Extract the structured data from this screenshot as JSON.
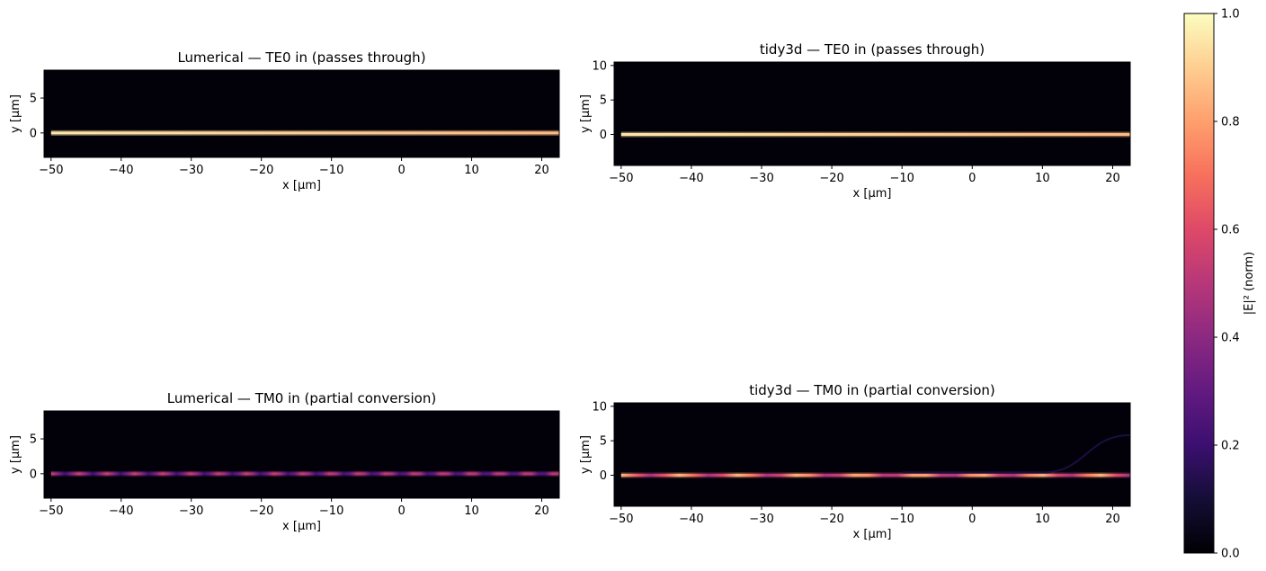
{
  "chart_data": [
    {
      "type": "heatmap",
      "title": "Lumerical — TE0 in (passes through)",
      "xlabel": "x [µm]",
      "ylabel": "y [µm]",
      "xlim": [
        -51,
        22.5
      ],
      "ylim": [
        -3.5,
        9
      ],
      "xticks": [
        -50,
        -40,
        -30,
        -20,
        -10,
        0,
        10,
        20
      ],
      "yticks": [
        0,
        5
      ],
      "waveguide_x": [
        -50,
        22.5
      ],
      "guided_mode": {
        "y_center": 0,
        "peak_intensity": 0.95,
        "beat_period_um": null,
        "beat_min_intensity": 0.7
      }
    },
    {
      "type": "heatmap",
      "title": "tidy3d — TE0 in (passes through)",
      "xlabel": "x [µm]",
      "ylabel": "y [µm]",
      "xlim": [
        -51,
        22.5
      ],
      "ylim": [
        -4.5,
        10.5
      ],
      "xticks": [
        -50,
        -40,
        -30,
        -20,
        -10,
        0,
        10,
        20
      ],
      "yticks": [
        0,
        5,
        10
      ],
      "waveguide_x": [
        -50,
        22.5
      ],
      "guided_mode": {
        "y_center": 0,
        "peak_intensity": 0.95,
        "beat_period_um": null,
        "beat_min_intensity": 0.7
      }
    },
    {
      "type": "heatmap",
      "title": "Lumerical — TM0 in (partial conversion)",
      "xlabel": "x [µm]",
      "ylabel": "y [µm]",
      "xlim": [
        -51,
        22.5
      ],
      "ylim": [
        -3.5,
        9
      ],
      "xticks": [
        -50,
        -40,
        -30,
        -20,
        -10,
        0,
        10,
        20
      ],
      "yticks": [
        0,
        5
      ],
      "waveguide_x": [
        -50,
        22.5
      ],
      "guided_mode": {
        "y_center": 0,
        "peak_intensity": 0.55,
        "beat_period_um": 4,
        "beat_min_intensity": 0.2
      }
    },
    {
      "type": "heatmap",
      "title": "tidy3d — TM0 in (partial conversion)",
      "xlabel": "x [µm]",
      "ylabel": "y [µm]",
      "xlim": [
        -51,
        22.5
      ],
      "ylim": [
        -4.5,
        10.5
      ],
      "xticks": [
        -50,
        -40,
        -30,
        -20,
        -10,
        0,
        10,
        20
      ],
      "yticks": [
        0,
        5,
        10
      ],
      "waveguide_x": [
        -50,
        22.5
      ],
      "guided_mode": {
        "y_center": 0,
        "peak_intensity": 0.85,
        "beat_period_um": 8.5,
        "beat_min_intensity": 0.45
      },
      "branch": {
        "x_start": 10,
        "x_end": 22.5,
        "y_end": 5.8,
        "intensity": 0.12
      }
    }
  ],
  "colorbar": {
    "label": "|E|² (norm)",
    "colormap": "magma",
    "range": [
      0.0,
      1.0
    ],
    "ticks": [
      "0.0",
      "0.2",
      "0.4",
      "0.6",
      "0.8",
      "1.0"
    ]
  }
}
